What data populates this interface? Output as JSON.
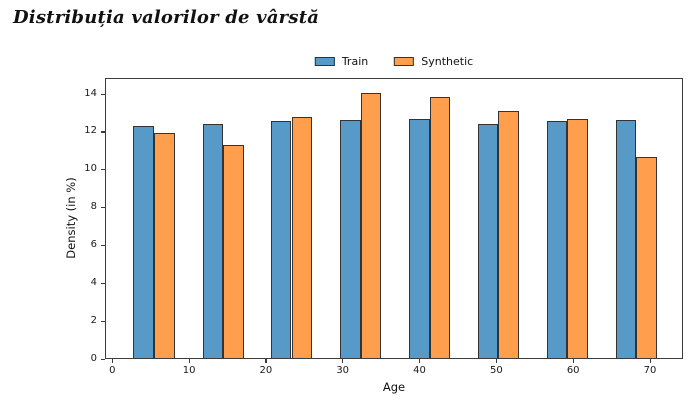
{
  "chart_data": {
    "type": "bar",
    "title": "Distribuția valorilor de vârstă",
    "xlabel": "Age",
    "ylabel": "Density (in %)",
    "legend_position": "top-center",
    "grid": false,
    "bin_centers": [
      5.3,
      14.3,
      23.2,
      32.2,
      41.2,
      50.1,
      59.1,
      68.1
    ],
    "bar_half_width": 2.69,
    "series": [
      {
        "name": "Train",
        "color": "#5799c7",
        "edge_color": "#333333",
        "values": [
          12.25,
          12.35,
          12.55,
          12.6,
          12.65,
          12.35,
          12.55,
          12.6
        ]
      },
      {
        "name": "Synthetic",
        "color": "#ff9f4d",
        "edge_color": "#333333",
        "values": [
          11.9,
          11.25,
          12.75,
          14.0,
          13.8,
          13.05,
          12.65,
          10.6
        ]
      }
    ],
    "xticks": [
      0,
      10,
      20,
      30,
      40,
      50,
      60,
      70
    ],
    "yticks": [
      0,
      2,
      4,
      6,
      8,
      10,
      12,
      14
    ],
    "xlim": [
      -0.95,
      74.3
    ],
    "ylim": [
      0,
      14.85
    ]
  }
}
